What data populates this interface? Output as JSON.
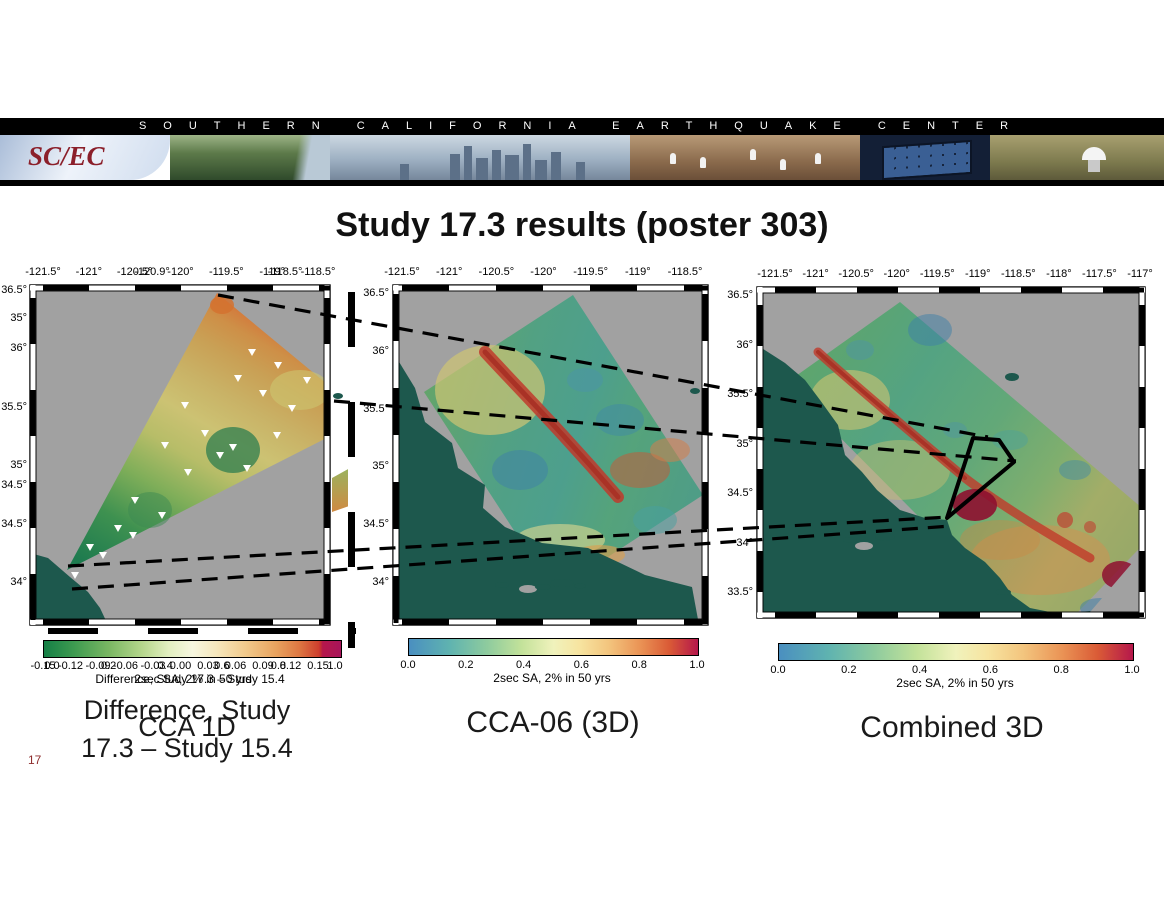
{
  "banner": {
    "strip_text": "SOUTHERN CALIFORNIA EARTHQUAKE CENTER",
    "logo_text": "SC/EC"
  },
  "title": "Study 17.3 results (poster 303)",
  "page_number": "17",
  "panel1": {
    "top_ticks": [
      "-121.5°",
      "-121°",
      "-120.5°",
      "-120°",
      "-119.5°",
      "-119°",
      "-118.5°"
    ],
    "top_ticks_overlay": [
      "-120.9°",
      "-118.5°"
    ],
    "left_ticks": [
      "36.5°",
      "36°",
      "35.5°",
      "35°",
      "34.5°",
      "34°"
    ],
    "left_ticks_overlay": [
      "35°",
      "34.5°"
    ],
    "colorbar_ticks": [
      "-0.15",
      "-0.12",
      "-0.09",
      "-0.06",
      "-0.03",
      "0.00",
      "0.03",
      "0.06",
      "0.09",
      "0.12",
      "0.15"
    ],
    "colorbar_ticks_overlay": [
      "0.0",
      "0.2",
      "0.4",
      "0.6",
      "0.8",
      "1.0"
    ],
    "colorbar_label": "Difference, Study 17.3 – Study 15.4",
    "colorbar_label_overlay": "2sec SA, 2% in 50 yrs",
    "caption_line1": "Difference, Study",
    "caption_line2": "17.3 – Study 15.4",
    "caption_overlay": "CCA 1D"
  },
  "panel2": {
    "top_ticks": [
      "-121.5°",
      "-121°",
      "-120.5°",
      "-120°",
      "-119.5°",
      "-119°",
      "-118.5°"
    ],
    "left_ticks": [
      "36.5°",
      "36°",
      "35.5°",
      "35°",
      "34.5°",
      "34°"
    ],
    "colorbar_ticks": [
      "0.0",
      "0.2",
      "0.4",
      "0.6",
      "0.8",
      "1.0"
    ],
    "colorbar_label": "2sec SA, 2% in 50 yrs",
    "caption": "CCA-06 (3D)"
  },
  "panel3": {
    "top_ticks": [
      "-121.5°",
      "-121°",
      "-120.5°",
      "-120°",
      "-119.5°",
      "-119°",
      "-118.5°",
      "-118°",
      "-117.5°",
      "-117°"
    ],
    "left_ticks": [
      "36.5°",
      "36°",
      "35.5°",
      "35°",
      "34.5°",
      "34°",
      "33.5°"
    ],
    "colorbar_ticks": [
      "0.0",
      "0.2",
      "0.4",
      "0.6",
      "0.8",
      "1.0"
    ],
    "colorbar_label": "2sec SA, 2% in 50 yrs",
    "caption": "Combined 3D"
  },
  "colors": {
    "ocean": "#1d584d",
    "map_background": "#a1a1a1",
    "page_number_red": "#8e2e2e",
    "fault_red": "#b5342a",
    "colorbar_end_magenta": "#b5174b"
  }
}
